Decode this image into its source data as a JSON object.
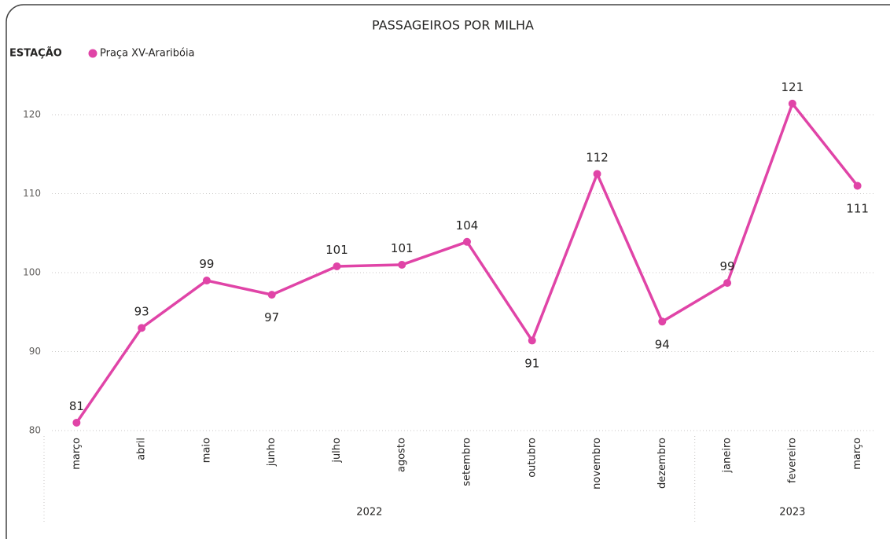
{
  "chart_data": {
    "type": "line",
    "title": "PASSAGEIROS POR MILHA",
    "legend_title": "ESTAÇÃO",
    "groups": [
      {
        "label": "2022",
        "categories": [
          "março",
          "abril",
          "maio",
          "junho",
          "julho",
          "agosto",
          "setembro",
          "outubro",
          "novembro",
          "dezembro"
        ]
      },
      {
        "label": "2023",
        "categories": [
          "janeiro",
          "fevereiro",
          "março"
        ]
      }
    ],
    "series": [
      {
        "name": "Praça XV-Araribóia",
        "color": "#e044a7",
        "values": [
          81,
          93,
          99,
          97.2,
          100.8,
          101,
          103.9,
          91.4,
          112.5,
          93.8,
          98.7,
          121.4,
          111
        ],
        "value_labels": [
          "81",
          "93",
          "99",
          "97",
          "101",
          "101",
          "104",
          "91",
          "112",
          "94",
          "99",
          "121",
          "111"
        ]
      }
    ],
    "ylim": [
      80,
      125
    ],
    "yticks": [
      80,
      90,
      100,
      110,
      120
    ],
    "grid": true
  }
}
